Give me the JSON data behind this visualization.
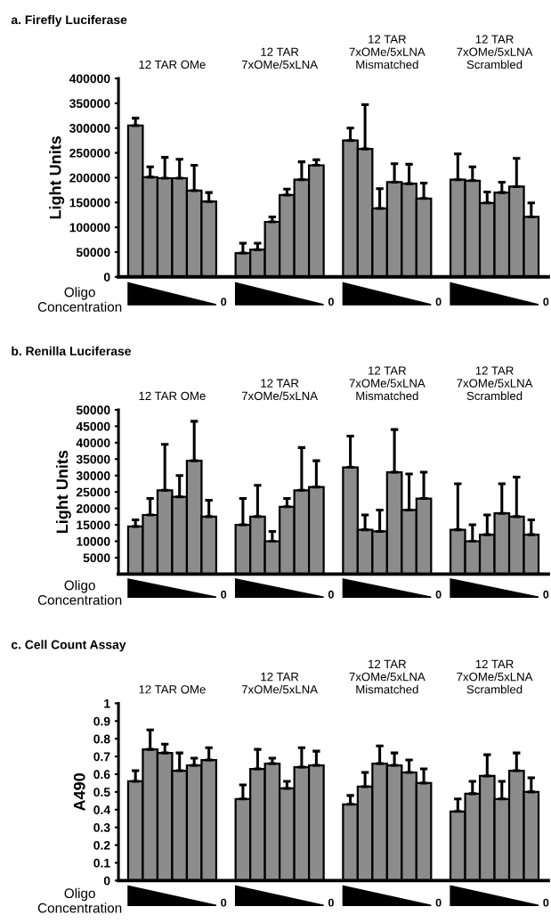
{
  "chart_data": [
    {
      "type": "bar",
      "title": "a. Firefly Luciferase",
      "ylabel": "Light Units",
      "categories": [
        "12 TAR OMe",
        "12 TAR\n7xOMe/5xLNA",
        "12 TAR\n7xOMe/5xLNA\nMismatched",
        "12 TAR\n7xOMe/5xLNA\nScrambled"
      ],
      "series": [
        {
          "color": "#8c8c8c",
          "values": [
            305000,
            48000,
            275000,
            196000
          ],
          "errors": [
            [
              305000,
              320000
            ],
            [
              48000,
              68000
            ],
            [
              275000,
              300000
            ],
            [
              196000,
              248000
            ]
          ]
        },
        {
          "color": "#8c8c8c",
          "values": [
            201000,
            55000,
            258000,
            194000
          ],
          "errors": [
            [
              201000,
              222000
            ],
            [
              55000,
              68000
            ],
            [
              258000,
              347000
            ],
            [
              194000,
              222000
            ]
          ]
        },
        {
          "color": "#8c8c8c",
          "values": [
            199000,
            111000,
            138000,
            149000
          ],
          "errors": [
            [
              199000,
              241000
            ],
            [
              111000,
              121000
            ],
            [
              138000,
              178000
            ],
            [
              149000,
              171000
            ]
          ]
        },
        {
          "color": "#8c8c8c",
          "values": [
            199000,
            165000,
            191000,
            170000
          ],
          "errors": [
            [
              199000,
              237000
            ],
            [
              165000,
              177000
            ],
            [
              191000,
              228000
            ],
            [
              170000,
              191000
            ]
          ]
        },
        {
          "color": "#8c8c8c",
          "values": [
            174000,
            196000,
            188000,
            182000
          ],
          "errors": [
            [
              174000,
              225000
            ],
            [
              196000,
              232000
            ],
            [
              188000,
              227000
            ],
            [
              182000,
              239000
            ]
          ]
        },
        {
          "color": "#8c8c8c",
          "values": [
            152000,
            225000,
            158000,
            121000
          ],
          "errors": [
            [
              152000,
              170000
            ],
            [
              225000,
              236000
            ],
            [
              158000,
              189000
            ],
            [
              121000,
              149000
            ]
          ]
        }
      ],
      "ylim": [
        0,
        400000
      ],
      "yticks": [
        0,
        50000,
        100000,
        150000,
        200000,
        250000,
        300000,
        350000,
        400000
      ],
      "annotations": [
        "Oligo\nConcentration",
        "0",
        "0",
        "0",
        "0"
      ]
    },
    {
      "type": "bar",
      "title": "b. Renilla Luciferase",
      "ylabel": "Light Units",
      "categories": [
        "12 TAR OMe",
        "12 TAR\n7xOMe/5xLNA",
        "12 TAR\n7xOMe/5xLNA\nMismatched",
        "12 TAR\n7xOMe/5xLNA\nScrambled"
      ],
      "series": [
        {
          "color": "#8c8c8c",
          "values": [
            14500,
            15000,
            32500,
            13500
          ],
          "errors": [
            [
              14500,
              16500
            ],
            [
              15000,
              23000
            ],
            [
              32500,
              42000
            ],
            [
              13500,
              27500
            ]
          ]
        },
        {
          "color": "#8c8c8c",
          "values": [
            18000,
            17500,
            13500,
            10000
          ],
          "errors": [
            [
              18000,
              23000
            ],
            [
              17500,
              27000
            ],
            [
              13500,
              18000
            ],
            [
              10000,
              15000
            ]
          ]
        },
        {
          "color": "#8c8c8c",
          "values": [
            25500,
            10000,
            13000,
            12000
          ],
          "errors": [
            [
              25500,
              39500
            ],
            [
              10000,
              13000
            ],
            [
              13000,
              19500
            ],
            [
              12000,
              18000
            ]
          ]
        },
        {
          "color": "#8c8c8c",
          "values": [
            23500,
            20500,
            31000,
            18500
          ],
          "errors": [
            [
              23500,
              30000
            ],
            [
              20500,
              23000
            ],
            [
              31000,
              44000
            ],
            [
              18500,
              27500
            ]
          ]
        },
        {
          "color": "#8c8c8c",
          "values": [
            34500,
            25500,
            19500,
            17500
          ],
          "errors": [
            [
              34500,
              46500
            ],
            [
              25500,
              38500
            ],
            [
              19500,
              30500
            ],
            [
              17500,
              29500
            ]
          ]
        },
        {
          "color": "#8c8c8c",
          "values": [
            17500,
            26500,
            23000,
            12000
          ],
          "errors": [
            [
              17500,
              22500
            ],
            [
              26500,
              34500
            ],
            [
              23000,
              31000
            ],
            [
              12000,
              16500
            ]
          ]
        }
      ],
      "ylim": [
        0,
        50000
      ],
      "yticks": [
        5000,
        10000,
        15000,
        20000,
        25000,
        30000,
        35000,
        40000,
        45000,
        50000
      ],
      "annotations": [
        "Oligo\nConcentration",
        "0",
        "0",
        "0",
        "0"
      ]
    },
    {
      "type": "bar",
      "title": "c. Cell Count Assay",
      "ylabel": "A490",
      "categories": [
        "12 TAR OMe",
        "12 TAR\n7xOMe/5xLNA",
        "12 TAR\n7xOMe/5xLNA\nMismatched",
        "12 TAR\n7xOMe/5xLNA\nScrambled"
      ],
      "series": [
        {
          "color": "#8c8c8c",
          "values": [
            0.56,
            0.46,
            0.43,
            0.39
          ],
          "errors": [
            [
              0.56,
              0.62
            ],
            [
              0.46,
              0.54
            ],
            [
              0.43,
              0.48
            ],
            [
              0.39,
              0.46
            ]
          ]
        },
        {
          "color": "#8c8c8c",
          "values": [
            0.74,
            0.63,
            0.53,
            0.49
          ],
          "errors": [
            [
              0.74,
              0.85
            ],
            [
              0.63,
              0.74
            ],
            [
              0.53,
              0.61
            ],
            [
              0.49,
              0.56
            ]
          ]
        },
        {
          "color": "#8c8c8c",
          "values": [
            0.72,
            0.66,
            0.66,
            0.59
          ],
          "errors": [
            [
              0.72,
              0.77
            ],
            [
              0.66,
              0.69
            ],
            [
              0.66,
              0.76
            ],
            [
              0.59,
              0.71
            ]
          ]
        },
        {
          "color": "#8c8c8c",
          "values": [
            0.62,
            0.52,
            0.65,
            0.46
          ],
          "errors": [
            [
              0.62,
              0.72
            ],
            [
              0.52,
              0.56
            ],
            [
              0.65,
              0.72
            ],
            [
              0.46,
              0.56
            ]
          ]
        },
        {
          "color": "#8c8c8c",
          "values": [
            0.65,
            0.64,
            0.61,
            0.62
          ],
          "errors": [
            [
              0.65,
              0.69
            ],
            [
              0.64,
              0.75
            ],
            [
              0.61,
              0.68
            ],
            [
              0.62,
              0.72
            ]
          ]
        },
        {
          "color": "#8c8c8c",
          "values": [
            0.68,
            0.65,
            0.55,
            0.5
          ],
          "errors": [
            [
              0.68,
              0.75
            ],
            [
              0.65,
              0.73
            ],
            [
              0.55,
              0.63
            ],
            [
              0.5,
              0.58
            ]
          ]
        }
      ],
      "ylim": [
        0,
        1
      ],
      "yticks": [
        0,
        0.1,
        0.2,
        0.3,
        0.4,
        0.5,
        0.6,
        0.7,
        0.8,
        0.9,
        1
      ],
      "annotations": [
        "Oligo\nConcentration",
        "0",
        "0",
        "0",
        "0"
      ]
    }
  ]
}
